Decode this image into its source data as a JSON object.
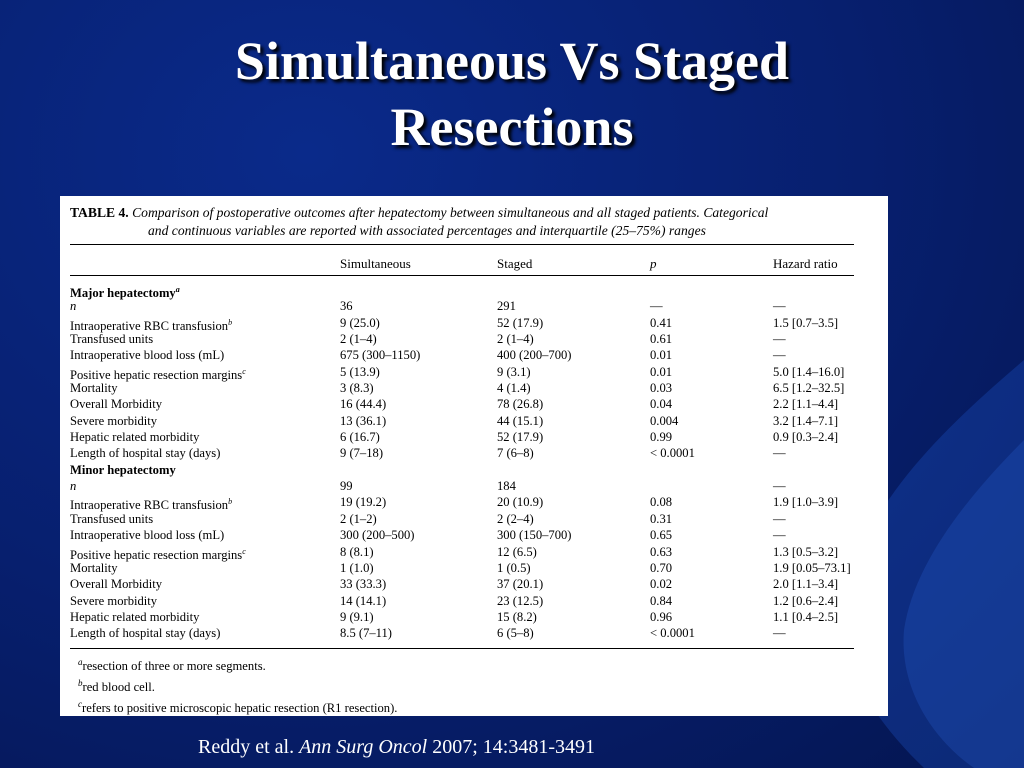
{
  "slide": {
    "title_line1": "Simultaneous Vs Staged",
    "title_line2": "Resections",
    "citation": {
      "authors": "Reddy et al.",
      "journal": "Ann Surg Oncol",
      "details": "2007; 14:3481-3491"
    },
    "colors": {
      "background": "#071f6e",
      "title": "#ffffff",
      "table_bg": "#ffffff"
    }
  },
  "table": {
    "label": "TABLE 4.",
    "caption_line1": "Comparison of postoperative outcomes after hepatectomy between simultaneous and all staged patients. Categorical",
    "caption_line2": "and continuous variables are reported with associated percentages and interquartile (25–75%) ranges",
    "headers": [
      "",
      "Simultaneous",
      "Staged",
      "p",
      "Hazard ratio"
    ],
    "sections": [
      {
        "name": "Major hepatectomy",
        "name_sup": "a",
        "rows": [
          {
            "label": "n",
            "simultaneous": "36",
            "staged": "291",
            "p": "—",
            "hr": "—"
          },
          {
            "label": "Intraoperative RBC transfusion",
            "label_sup": "b",
            "simultaneous": "9 (25.0)",
            "staged": "52 (17.9)",
            "p": "0.41",
            "hr": "1.5 [0.7–3.5]"
          },
          {
            "label": "Transfused units",
            "simultaneous": "2 (1–4)",
            "staged": "2 (1–4)",
            "p": "0.61",
            "hr": "—"
          },
          {
            "label": "Intraoperative blood loss (mL)",
            "simultaneous": "675 (300–1150)",
            "staged": "400 (200–700)",
            "p": "0.01",
            "hr": "—"
          },
          {
            "label": "Positive hepatic resection margins",
            "label_sup": "c",
            "simultaneous": "5 (13.9)",
            "staged": "9 (3.1)",
            "p": "0.01",
            "hr": "5.0 [1.4–16.0]"
          },
          {
            "label": "Mortality",
            "simultaneous": "3 (8.3)",
            "staged": "4 (1.4)",
            "p": "0.03",
            "hr": "6.5 [1.2–32.5]"
          },
          {
            "label": "Overall Morbidity",
            "simultaneous": "16 (44.4)",
            "staged": "78 (26.8)",
            "p": "0.04",
            "hr": "2.2 [1.1–4.4]"
          },
          {
            "label": "Severe morbidity",
            "simultaneous": "13 (36.1)",
            "staged": "44 (15.1)",
            "p": "0.004",
            "hr": "3.2 [1.4–7.1]"
          },
          {
            "label": "Hepatic related morbidity",
            "simultaneous": "6 (16.7)",
            "staged": "52 (17.9)",
            "p": "0.99",
            "hr": "0.9 [0.3–2.4]"
          },
          {
            "label": "Length of hospital stay (days)",
            "simultaneous": "9 (7–18)",
            "staged": "7 (6–8)",
            "p": "< 0.0001",
            "hr": "—"
          }
        ]
      },
      {
        "name": "Minor hepatectomy",
        "name_sup": "",
        "rows": [
          {
            "label": "n",
            "simultaneous": "99",
            "staged": "184",
            "p": "",
            "hr": "—"
          },
          {
            "label": "Intraoperative RBC transfusion",
            "label_sup": "b",
            "simultaneous": "19 (19.2)",
            "staged": "20 (10.9)",
            "p": "0.08",
            "hr": "1.9 [1.0–3.9]"
          },
          {
            "label": "Transfused units",
            "simultaneous": "2 (1–2)",
            "staged": "2 (2–4)",
            "p": "0.31",
            "hr": "—"
          },
          {
            "label": "Intraoperative blood loss (mL)",
            "simultaneous": "300 (200–500)",
            "staged": "300 (150–700)",
            "p": "0.65",
            "hr": "—"
          },
          {
            "label": "Positive hepatic resection margins",
            "label_sup": "c",
            "simultaneous": "8 (8.1)",
            "staged": "12 (6.5)",
            "p": "0.63",
            "hr": "1.3 [0.5–3.2]"
          },
          {
            "label": "Mortality",
            "simultaneous": "1 (1.0)",
            "staged": "1 (0.5)",
            "p": "0.70",
            "hr": "1.9 [0.05–73.1]"
          },
          {
            "label": "Overall Morbidity",
            "simultaneous": "33 (33.3)",
            "staged": "37 (20.1)",
            "p": "0.02",
            "hr": "2.0 [1.1–3.4]"
          },
          {
            "label": "Severe morbidity",
            "simultaneous": "14 (14.1)",
            "staged": "23 (12.5)",
            "p": "0.84",
            "hr": "1.2 [0.6–2.4]"
          },
          {
            "label": "Hepatic related morbidity",
            "simultaneous": "9 (9.1)",
            "staged": "15 (8.2)",
            "p": "0.96",
            "hr": "1.1 [0.4–2.5]"
          },
          {
            "label": "Length of hospital stay (days)",
            "simultaneous": "8.5 (7–11)",
            "staged": "6 (5–8)",
            "p": "< 0.0001",
            "hr": "—"
          }
        ]
      }
    ],
    "footnotes": [
      {
        "mark": "a",
        "text": "resection of three or more segments."
      },
      {
        "mark": "b",
        "text": "red blood cell."
      },
      {
        "mark": "c",
        "text": "refers to positive microscopic hepatic resection (R1 resection)."
      }
    ]
  }
}
